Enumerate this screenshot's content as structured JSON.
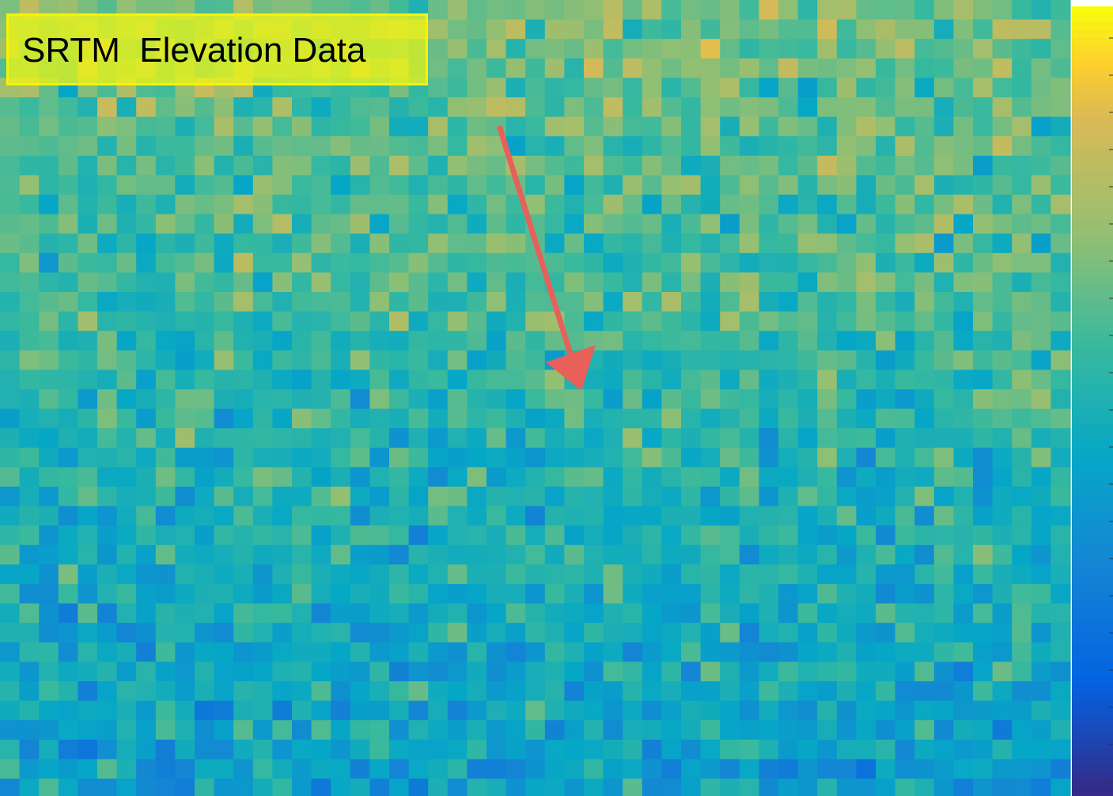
{
  "label": {
    "title": "SRTM  Elevation Data"
  }
}
